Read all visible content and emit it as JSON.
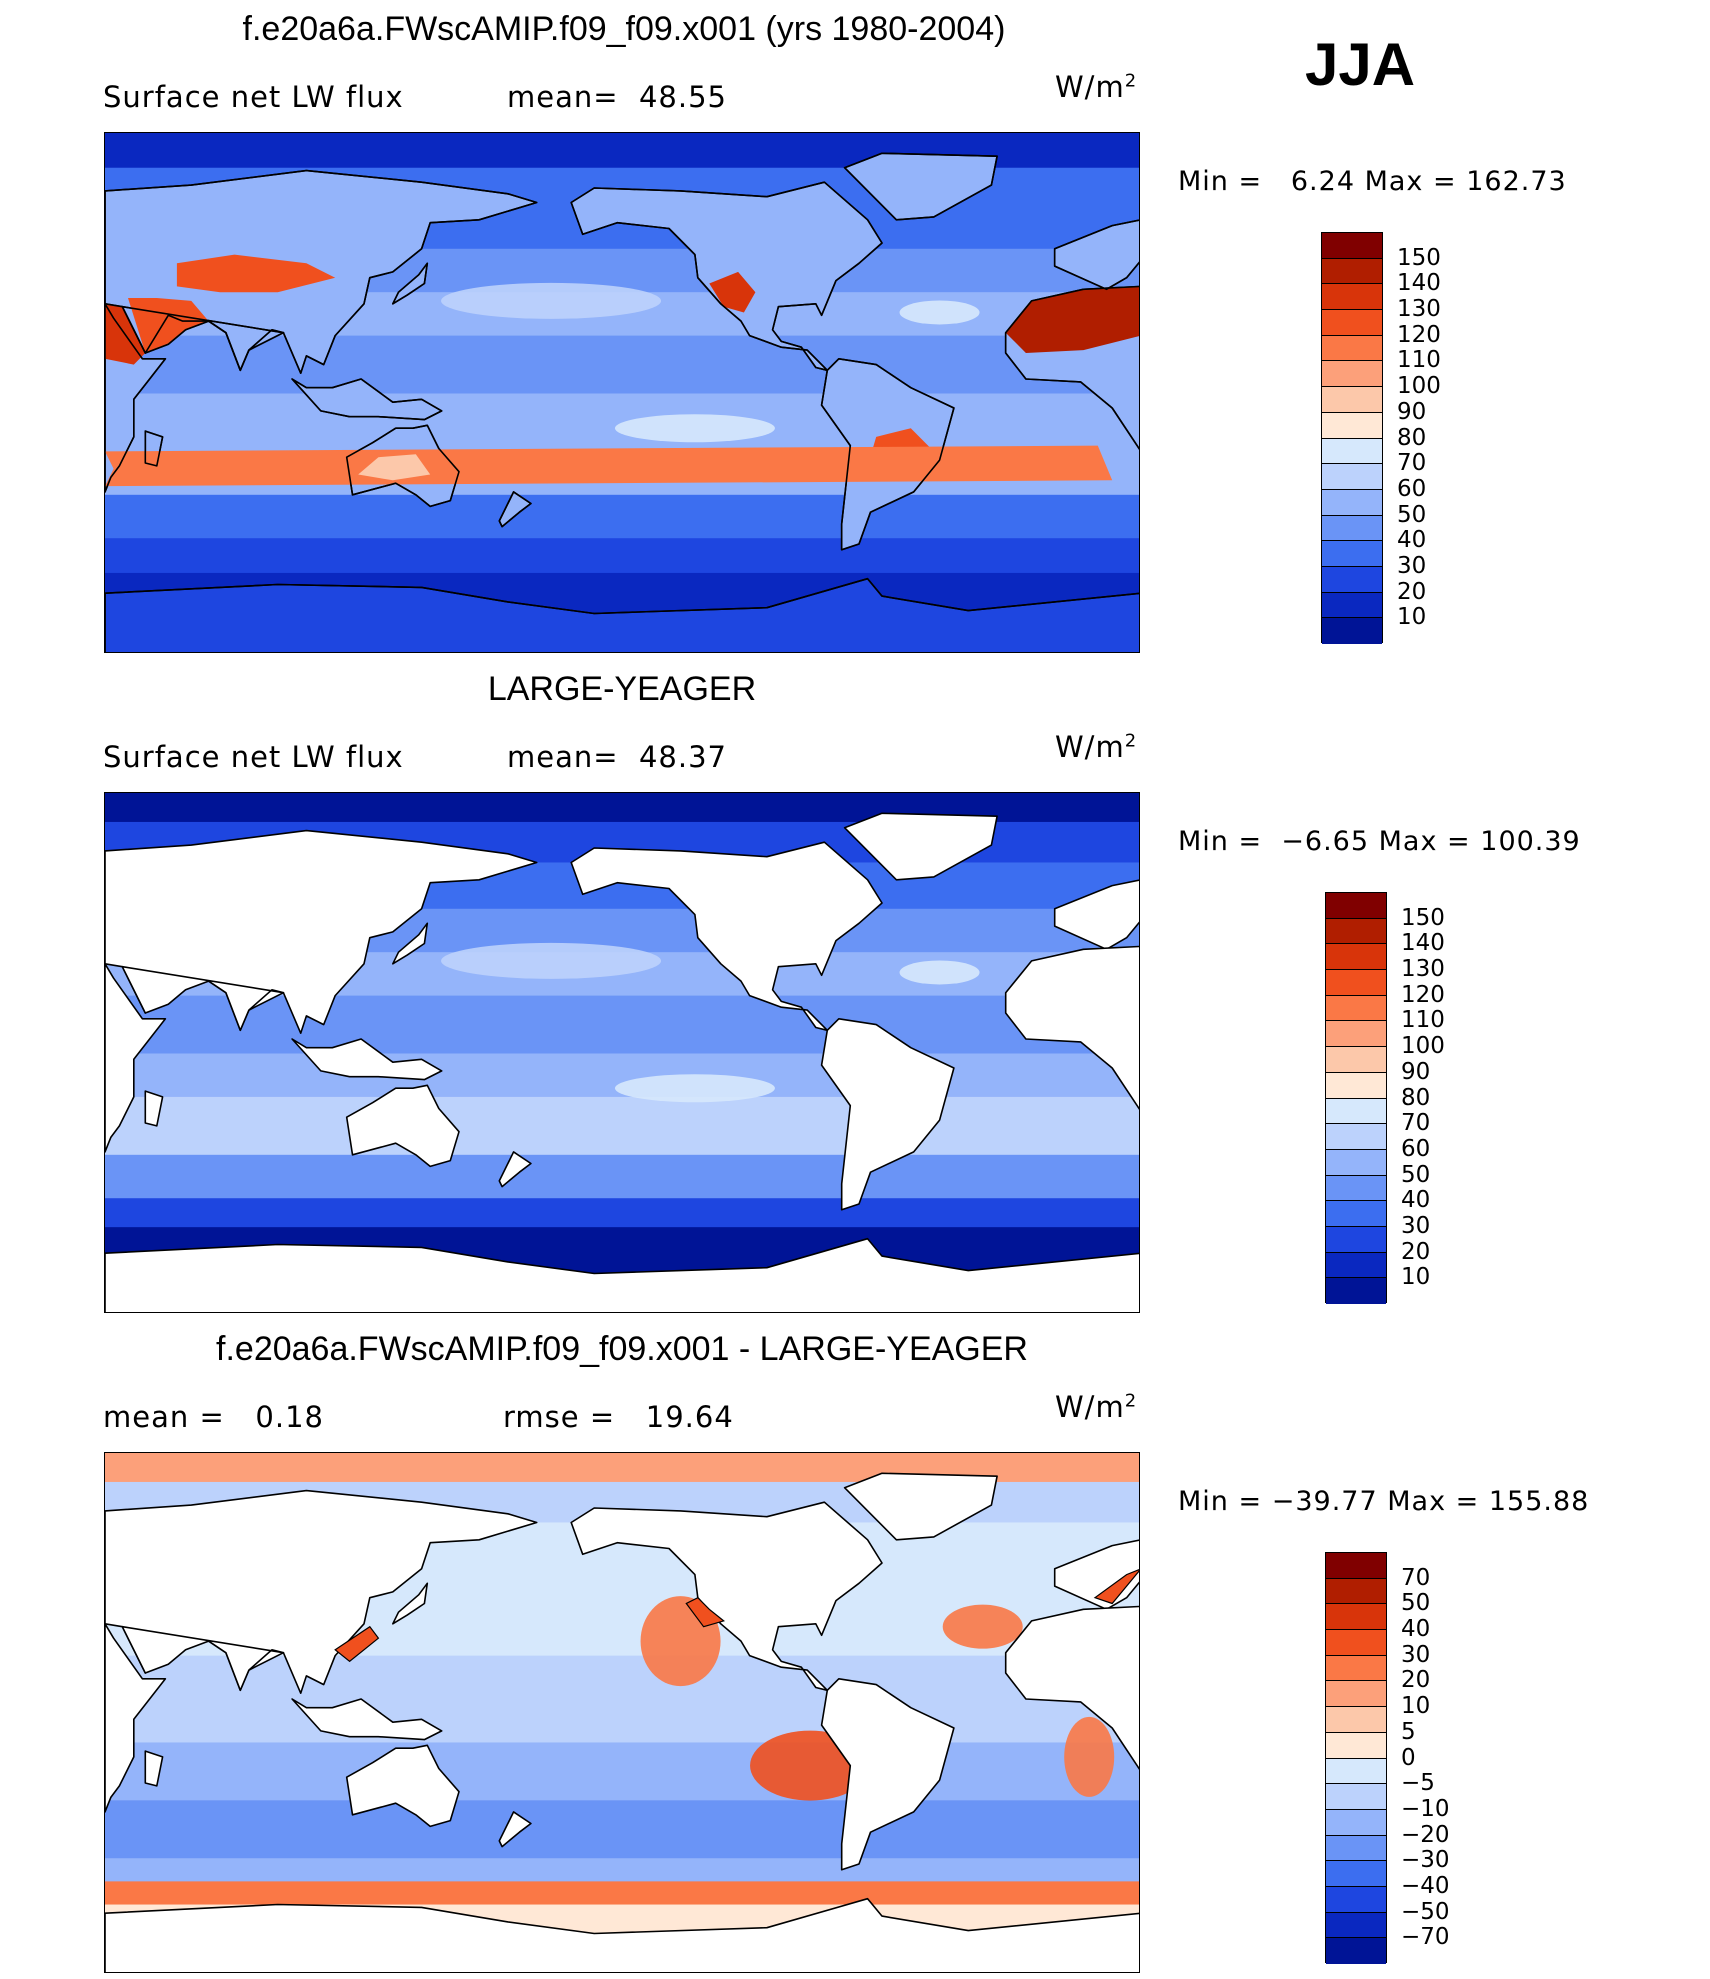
{
  "season": "JJA",
  "units_base": "W/m",
  "units_exp": "2",
  "panels": [
    {
      "title": "f.e20a6a.FWscAMIP.f09_f09.x001 (yrs 1980-2004)",
      "left_label": "Surface net LW flux",
      "mid_label": "mean=  48.55",
      "min_label": "Min =",
      "min_value": "6.24",
      "max_label": "Max =",
      "max_value": "162.73",
      "colorbar_levels": [
        "150",
        "140",
        "130",
        "120",
        "110",
        "100",
        "90",
        "80",
        "70",
        "60",
        "50",
        "40",
        "30",
        "20",
        "10"
      ],
      "colors": [
        "#800000",
        "#b01e00",
        "#d8340a",
        "#f0501e",
        "#fa7846",
        "#fca07a",
        "#fcc8aa",
        "#ffe8d6",
        "#d6e8fc",
        "#bcd2fc",
        "#94b4fa",
        "#6a94f6",
        "#3c6ef0",
        "#1e46e0",
        "#0a28c0",
        "#001496"
      ],
      "land_masked": false
    },
    {
      "title": "LARGE-YEAGER",
      "left_label": "Surface net LW flux",
      "mid_label": "mean=  48.37",
      "min_label": "Min =",
      "min_value": "−6.65",
      "max_label": "Max =",
      "max_value": "100.39",
      "colorbar_levels": [
        "150",
        "140",
        "130",
        "120",
        "110",
        "100",
        "90",
        "80",
        "70",
        "60",
        "50",
        "40",
        "30",
        "20",
        "10"
      ],
      "colors": [
        "#800000",
        "#b01e00",
        "#d8340a",
        "#f0501e",
        "#fa7846",
        "#fca07a",
        "#fcc8aa",
        "#ffe8d6",
        "#d6e8fc",
        "#bcd2fc",
        "#94b4fa",
        "#6a94f6",
        "#3c6ef0",
        "#1e46e0",
        "#0a28c0",
        "#001496"
      ],
      "land_masked": true
    },
    {
      "title": "f.e20a6a.FWscAMIP.f09_f09.x001 - LARGE-YEAGER",
      "left_label": "mean =   0.18",
      "mid_label": "rmse =   19.64",
      "min_label": "Min =",
      "min_value": "−39.77",
      "max_label": "Max =",
      "max_value": "155.88",
      "colorbar_levels": [
        "70",
        "50",
        "40",
        "30",
        "20",
        "10",
        "5",
        "0",
        "−5",
        "−10",
        "−20",
        "−30",
        "−40",
        "−50",
        "−70"
      ],
      "colors": [
        "#800000",
        "#b01e00",
        "#d8340a",
        "#f0501e",
        "#fa7846",
        "#fca07a",
        "#fcc8aa",
        "#ffe8d6",
        "#d6e8fc",
        "#bcd2fc",
        "#94b4fa",
        "#6a94f6",
        "#3c6ef0",
        "#1e46e0",
        "#0a28c0",
        "#001496"
      ],
      "land_masked": true
    }
  ]
}
